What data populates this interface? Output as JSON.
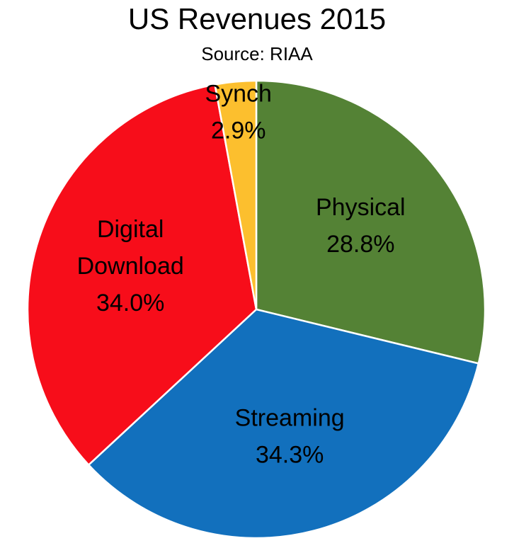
{
  "chart_data": {
    "type": "pie",
    "title": "US Revenues 2015",
    "subtitle": "Source: RIAA",
    "start_angle_deg": 0,
    "direction": "clockwise",
    "slices": [
      {
        "label_lines": [
          "Physical"
        ],
        "value_label": "28.8%",
        "value": 28.8,
        "color": "#548235"
      },
      {
        "label_lines": [
          "Streaming"
        ],
        "value_label": "34.3%",
        "value": 34.3,
        "color": "#1270BD"
      },
      {
        "label_lines": [
          "Digital",
          "Download"
        ],
        "value_label": "34.0%",
        "value": 34.0,
        "color": "#F70D1A"
      },
      {
        "label_lines": [
          "Synch"
        ],
        "value_label": "2.9%",
        "value": 2.9,
        "color": "#FCBF2E"
      }
    ]
  }
}
